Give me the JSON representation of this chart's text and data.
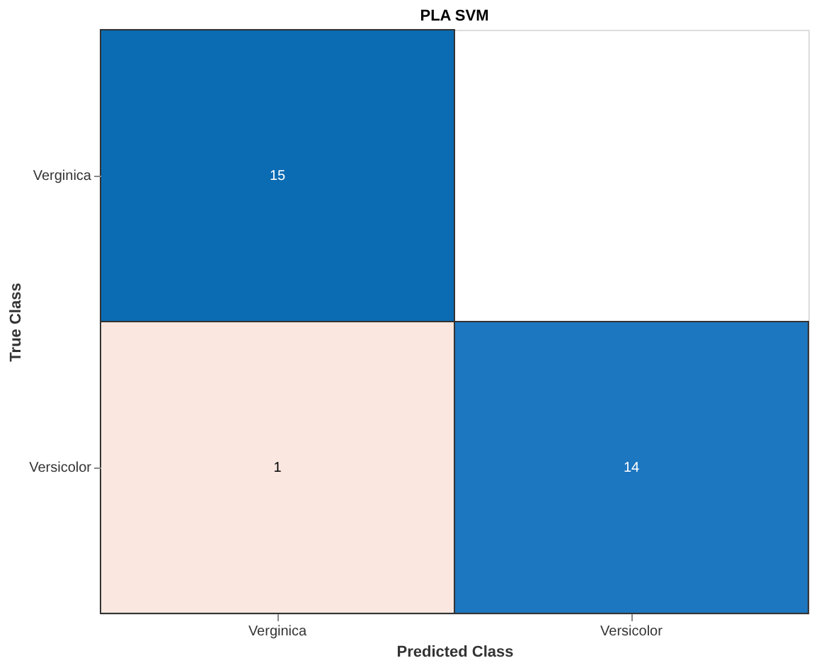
{
  "chart_data": {
    "type": "heatmap",
    "title": "PLA SVM",
    "xlabel": "Predicted Class",
    "ylabel": "True Class",
    "categories": [
      "Verginica",
      "Versicolor"
    ],
    "y_categories": [
      "Verginica",
      "Versicolor"
    ],
    "cells": [
      [
        15,
        null
      ],
      [
        1,
        14
      ]
    ],
    "colors": [
      [
        "#0b6bb3",
        null
      ],
      [
        "#f9e7e0",
        "#1c76c0"
      ]
    ],
    "data_labels": true,
    "legend": false
  }
}
